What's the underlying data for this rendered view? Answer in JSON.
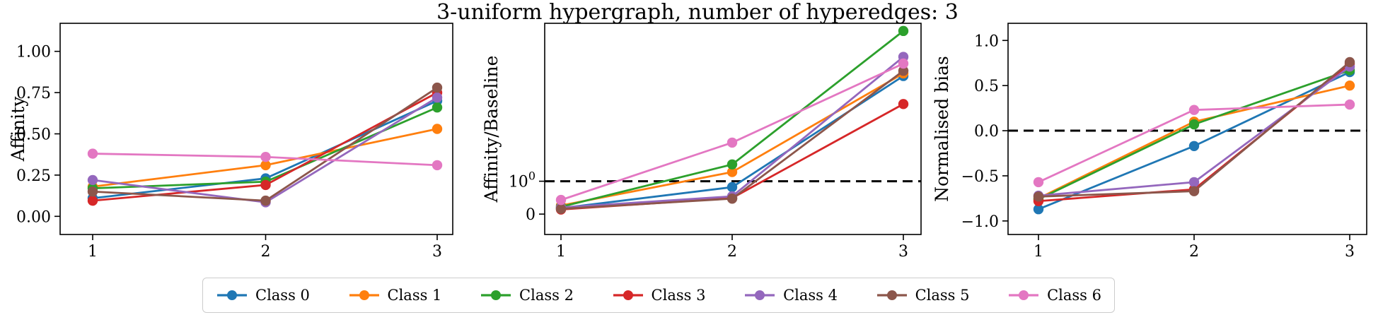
{
  "title": "3-uniform hypergraph, number of hyperedges: 3",
  "classes": [
    {
      "label": "Class 0",
      "color": "#1f77b4"
    },
    {
      "label": "Class 1",
      "color": "#ff7f0e"
    },
    {
      "label": "Class 2",
      "color": "#2ca02c"
    },
    {
      "label": "Class 3",
      "color": "#d62728"
    },
    {
      "label": "Class 4",
      "color": "#9467bd"
    },
    {
      "label": "Class 5",
      "color": "#8c564b"
    },
    {
      "label": "Class 6",
      "color": "#e377c2"
    }
  ],
  "chart_data": [
    {
      "type": "line",
      "panel": "affinity",
      "ylabel": "Affinity",
      "x": [
        1,
        2,
        3
      ],
      "xticklabels": [
        "1",
        "2",
        "3"
      ],
      "yscale": "linear",
      "yticks": [
        0.0,
        0.25,
        0.5,
        0.75,
        1.0
      ],
      "yticklabels": [
        "0.00",
        "0.25",
        "0.50",
        "0.75",
        "1.00"
      ],
      "ylim": [
        -0.11,
        1.17
      ],
      "baseline": null,
      "series": [
        {
          "name": "Class 0",
          "values": [
            0.11,
            0.23,
            0.7
          ]
        },
        {
          "name": "Class 1",
          "values": [
            0.18,
            0.31,
            0.53
          ]
        },
        {
          "name": "Class 2",
          "values": [
            0.17,
            0.21,
            0.66
          ]
        },
        {
          "name": "Class 3",
          "values": [
            0.095,
            0.19,
            0.75
          ]
        },
        {
          "name": "Class 4",
          "values": [
            0.22,
            0.085,
            0.72
          ]
        },
        {
          "name": "Class 5",
          "values": [
            0.15,
            0.095,
            0.78
          ]
        },
        {
          "name": "Class 6",
          "values": [
            0.38,
            0.36,
            0.31
          ]
        }
      ]
    },
    {
      "type": "line",
      "panel": "ratio",
      "ylabel": "Affinity/Baseline",
      "x": [
        1,
        2,
        3
      ],
      "xticklabels": [
        "1",
        "2",
        "3"
      ],
      "yscale": "symlog",
      "yticks": [
        0,
        1
      ],
      "yticklabels": [
        "0",
        "10^0"
      ],
      "ylim": [
        -0.62,
        6
      ],
      "baseline": 1,
      "series": [
        {
          "name": "Class 0",
          "values": [
            0.18,
            0.82,
            3.3
          ]
        },
        {
          "name": "Class 1",
          "values": [
            0.26,
            1.11,
            3.4
          ]
        },
        {
          "name": "Class 2",
          "values": [
            0.22,
            1.21,
            5.5
          ]
        },
        {
          "name": "Class 3",
          "values": [
            0.14,
            0.49,
            2.4
          ]
        },
        {
          "name": "Class 4",
          "values": [
            0.2,
            0.54,
            4.1
          ]
        },
        {
          "name": "Class 5",
          "values": [
            0.16,
            0.47,
            3.5
          ]
        },
        {
          "name": "Class 6",
          "values": [
            0.43,
            1.55,
            3.8
          ]
        }
      ]
    },
    {
      "type": "line",
      "panel": "bias",
      "ylabel": "Normalised bias",
      "x": [
        1,
        2,
        3
      ],
      "xticklabels": [
        "1",
        "2",
        "3"
      ],
      "yscale": "linear",
      "yticks": [
        -1.0,
        -0.5,
        0.0,
        0.5,
        1.0
      ],
      "yticklabels": [
        "−1.0",
        "−0.5",
        "0.0",
        "0.5",
        "1.0"
      ],
      "ylim": [
        -1.15,
        1.19
      ],
      "baseline": 0,
      "series": [
        {
          "name": "Class 0",
          "values": [
            -0.87,
            -0.17,
            0.65
          ]
        },
        {
          "name": "Class 1",
          "values": [
            -0.75,
            0.1,
            0.5
          ]
        },
        {
          "name": "Class 2",
          "values": [
            -0.76,
            0.07,
            0.67
          ]
        },
        {
          "name": "Class 3",
          "values": [
            -0.78,
            -0.65,
            0.74
          ]
        },
        {
          "name": "Class 4",
          "values": [
            -0.72,
            -0.57,
            0.71
          ]
        },
        {
          "name": "Class 5",
          "values": [
            -0.73,
            -0.67,
            0.76
          ]
        },
        {
          "name": "Class 6",
          "values": [
            -0.57,
            0.23,
            0.29
          ]
        }
      ]
    }
  ]
}
